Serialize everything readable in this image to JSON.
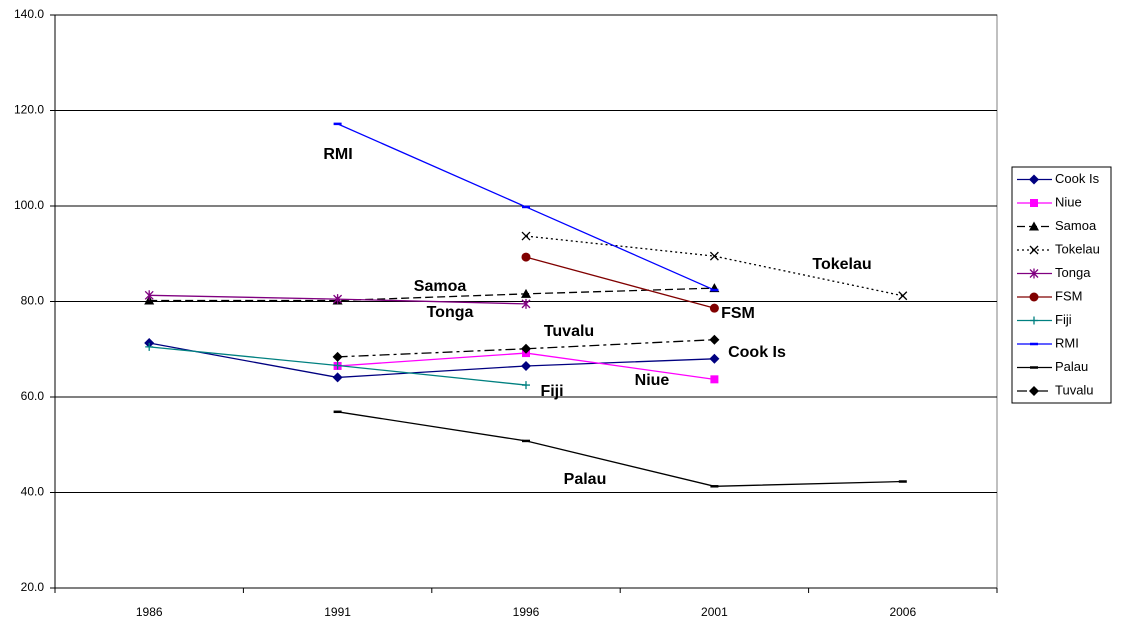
{
  "chart_data": {
    "type": "line",
    "categories": [
      "1986",
      "1991",
      "1996",
      "2001",
      "2006"
    ],
    "ylim": [
      20,
      140
    ],
    "yticks": [
      {
        "value": 20,
        "label": "20.0"
      },
      {
        "value": 40,
        "label": "40.0"
      },
      {
        "value": 60,
        "label": "60.0"
      },
      {
        "value": 80,
        "label": "80.0"
      },
      {
        "value": 100,
        "label": "100.0"
      },
      {
        "value": 120,
        "label": "120.0"
      },
      {
        "value": 140,
        "label": "140.0"
      }
    ],
    "grid": true,
    "legend": "right",
    "series": [
      {
        "name": "Cook Is",
        "color": "#000080",
        "marker": "diamond",
        "dash": "solid",
        "values": [
          71.3,
          64.1,
          66.5,
          68.0,
          null
        ]
      },
      {
        "name": "Niue",
        "color": "#ff00ff",
        "marker": "square",
        "dash": "solid",
        "values": [
          null,
          66.5,
          69.2,
          63.7,
          null
        ]
      },
      {
        "name": "Samoa",
        "color": "#000000",
        "marker": "triangle",
        "dash": "dashed",
        "values": [
          80.2,
          80.2,
          81.6,
          82.8,
          null
        ]
      },
      {
        "name": "Tokelau",
        "color": "#000000",
        "marker": "x",
        "dash": "dotted",
        "values": [
          null,
          null,
          93.7,
          89.5,
          81.2
        ]
      },
      {
        "name": "Tonga",
        "color": "#800080",
        "marker": "star",
        "dash": "solid",
        "values": [
          81.3,
          80.5,
          79.5,
          null,
          null
        ]
      },
      {
        "name": "FSM",
        "color": "#800000",
        "marker": "circle",
        "dash": "solid",
        "values": [
          null,
          null,
          89.3,
          78.6,
          null
        ]
      },
      {
        "name": "Fiji",
        "color": "#008080",
        "marker": "plus",
        "dash": "solid",
        "values": [
          70.5,
          66.6,
          62.5,
          null,
          null
        ]
      },
      {
        "name": "RMI",
        "color": "#0000ff",
        "marker": "dash",
        "dash": "solid",
        "values": [
          null,
          117.2,
          99.8,
          82.4,
          null
        ]
      },
      {
        "name": "Palau",
        "color": "#000000",
        "marker": "dash",
        "dash": "solid",
        "values": [
          null,
          56.9,
          50.8,
          41.3,
          42.3
        ]
      },
      {
        "name": "Tuvalu",
        "color": "#000000",
        "marker": "diamond",
        "dash": "longdash",
        "values": [
          null,
          68.4,
          70.1,
          72.0,
          null
        ]
      }
    ],
    "annotations": [
      "RMI",
      "Samoa",
      "Tonga",
      "Tokelau",
      "FSM",
      "Tuvalu",
      "Cook Is",
      "Niue",
      "Fiji",
      "Palau"
    ]
  }
}
